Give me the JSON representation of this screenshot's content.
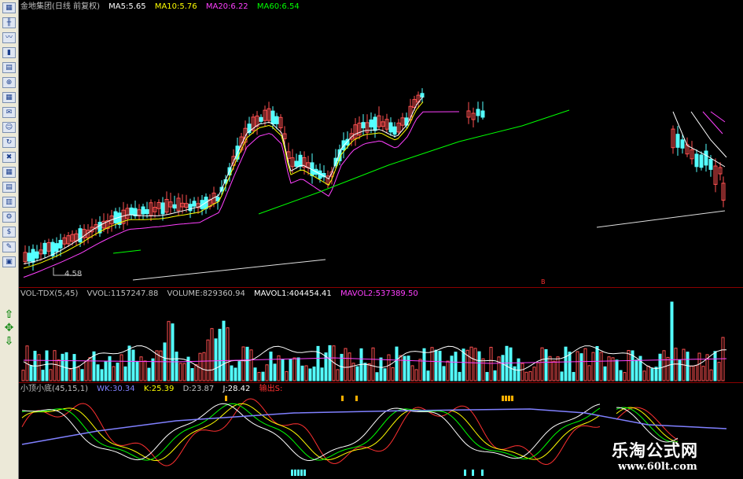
{
  "toolbar": {
    "icons": [
      "chart-type-icon",
      "kline-icon",
      "line-chart-icon",
      "bar-chart-icon",
      "indicator-icon",
      "zoom-icon",
      "calendar-icon",
      "mail-icon",
      "users-icon",
      "refresh-icon",
      "exit-icon",
      "grid-icon",
      "table-icon",
      "data-icon",
      "settings-icon",
      "money-icon",
      "tools-icon",
      "window-icon",
      "up-arrow-icon",
      "move-icon",
      "down-arrow-icon"
    ]
  },
  "main_panel": {
    "title": "金地集团(日线 前复权)",
    "ma5": "MA5:5.65",
    "ma10": "MA10:5.76",
    "ma20": "MA20:6.22",
    "ma60": "MA60:6.54",
    "low_label": "4.58",
    "signal_mark": "B"
  },
  "volume_panel": {
    "title": "VOL-TDX(5,45)",
    "vvol": "VVOL:1157247.88",
    "volume": "VOLUME:829360.94",
    "mavol1": "MAVOL1:404454.41",
    "mavol2": "MAVOL2:537389.50"
  },
  "kdj_panel": {
    "title": "小顶小底(45,15,1)",
    "wk": "WK:30.34",
    "k": "K:25.39",
    "d": "D:23.87",
    "j": "J:28.42",
    "signal": "输出S:"
  },
  "watermark": {
    "name": "乐淘公式网",
    "url": "www.60lt.com"
  },
  "colors": {
    "up": "#ff5050",
    "down": "#54ffff",
    "ma5": "#ffffff",
    "ma10": "#ffff00",
    "ma20": "#ff40ff",
    "ma60": "#00ff00",
    "separator": "#8b0000"
  }
}
